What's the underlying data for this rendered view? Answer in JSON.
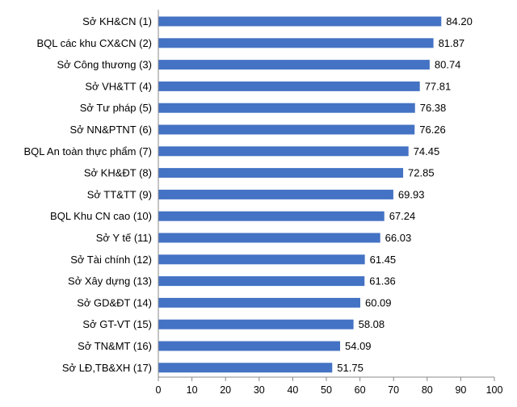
{
  "chart_data": {
    "type": "bar",
    "orientation": "horizontal",
    "categories": [
      "Sở KH&CN (1)",
      "BQL các khu CX&CN (2)",
      "Sở Công thương (3)",
      "Sở VH&TT (4)",
      "Sở Tư pháp (5)",
      "Sở NN&PTNT (6)",
      "BQL An toàn thực phẩm (7)",
      "Sở KH&ĐT (8)",
      "Sở TT&TT (9)",
      "BQL Khu CN cao (10)",
      "Sở Y tế (11)",
      "Sở Tài chính (12)",
      "Sở Xây dựng (13)",
      "Sở GD&ĐT (14)",
      "Sở GT-VT (15)",
      "Sở TN&MT (16)",
      "Sở LĐ,TB&XH (17)"
    ],
    "values": [
      84.2,
      81.87,
      80.74,
      77.81,
      76.38,
      76.26,
      74.45,
      72.85,
      69.93,
      67.24,
      66.03,
      61.45,
      61.36,
      60.09,
      58.08,
      54.09,
      51.75
    ],
    "value_labels": [
      "84.20",
      "81.87",
      "80.74",
      "77.81",
      "76.38",
      "76.26",
      "74.45",
      "72.85",
      "69.93",
      "67.24",
      "66.03",
      "61.45",
      "61.36",
      "60.09",
      "58.08",
      "54.09",
      "51.75"
    ],
    "xlim": [
      0,
      100
    ],
    "xticks": [
      "0",
      "10",
      "20",
      "30",
      "40",
      "50",
      "60",
      "70",
      "80",
      "90",
      "100"
    ],
    "grid": false,
    "legend": "none",
    "bar_color": "#4472C4",
    "title": "",
    "xlabel": "",
    "ylabel": ""
  }
}
